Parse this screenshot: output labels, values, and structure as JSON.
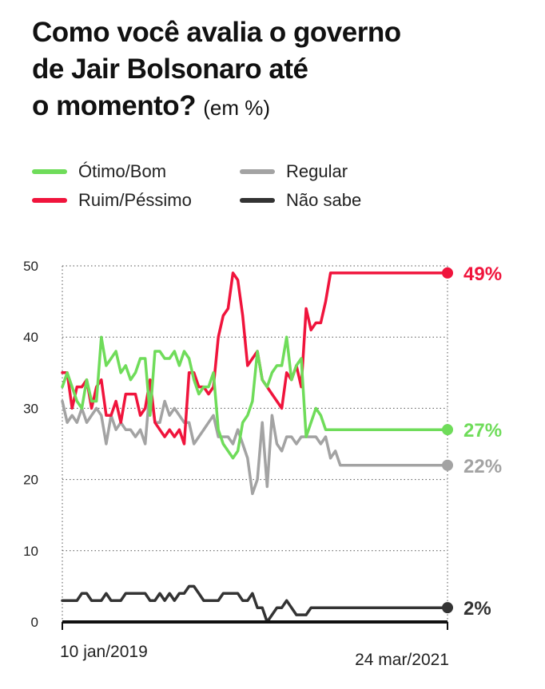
{
  "title": {
    "line1": "Como você avalia o governo",
    "line2": "de Jair Bolsonaro até",
    "line3": "o momento?",
    "unit": "(em %)"
  },
  "legend": [
    {
      "label": "Ótimo/Bom",
      "color": "#6fdc5a"
    },
    {
      "label": "Regular",
      "color": "#a3a3a3"
    },
    {
      "label": "Ruim/Péssimo",
      "color": "#f0143c"
    },
    {
      "label": "Não sabe",
      "color": "#333333"
    }
  ],
  "chart_data": {
    "type": "line",
    "title": "Como você avalia o governo de Jair Bolsonaro até o momento? (em %)",
    "ylim": [
      0,
      50
    ],
    "yticks": [
      "0",
      "10",
      "20",
      "30",
      "40",
      "50"
    ],
    "x_range_labels": [
      "10 jan/2019",
      "24 mar/2021"
    ],
    "x": [
      0,
      1,
      2,
      3,
      4,
      5,
      6,
      7,
      8,
      9,
      10,
      11,
      12,
      13,
      14,
      15,
      16,
      17,
      18,
      19,
      20,
      21,
      22,
      23,
      24,
      25,
      26,
      27,
      28,
      29,
      30,
      31,
      32,
      33,
      34,
      35,
      36,
      37,
      38,
      39,
      40,
      41,
      42,
      43,
      44,
      45,
      46,
      47,
      48,
      49,
      50,
      51,
      52,
      53,
      54,
      55,
      56,
      57,
      58,
      59,
      60,
      61,
      62,
      63,
      64,
      65,
      66,
      67,
      68,
      69,
      70,
      71,
      72,
      73,
      74,
      75,
      76,
      77,
      78,
      79
    ],
    "grid": true,
    "series": [
      {
        "name": "Ótimo/Bom",
        "color": "#6fdc5a",
        "end_label": "27%",
        "values": [
          33,
          35,
          33,
          31,
          30,
          34,
          31,
          31,
          40,
          36,
          37,
          38,
          35,
          36,
          34,
          35,
          37,
          37,
          29,
          38,
          38,
          37,
          37,
          38,
          36,
          38,
          37,
          34,
          32,
          33,
          33,
          35,
          27,
          25,
          24,
          23,
          24,
          28,
          29,
          31,
          38,
          34,
          33,
          35,
          36,
          36,
          40,
          34,
          36,
          37,
          26,
          28,
          30,
          29,
          27,
          27,
          27,
          27,
          27,
          27,
          27,
          27,
          27,
          27,
          27,
          27,
          27,
          27,
          27,
          27,
          27,
          27,
          27,
          27,
          27,
          27,
          27,
          27,
          27,
          27
        ]
      },
      {
        "name": "Ruim/Péssimo",
        "color": "#f0143c",
        "end_label": "49%",
        "values": [
          35,
          35,
          30,
          33,
          33,
          34,
          30,
          33,
          34,
          29,
          29,
          31,
          28,
          32,
          32,
          32,
          29,
          30,
          34,
          28,
          27,
          26,
          27,
          26,
          27,
          25,
          35,
          35,
          33,
          33,
          32,
          33,
          40,
          43,
          44,
          49,
          48,
          43,
          36,
          37,
          38,
          34,
          33,
          32,
          31,
          30,
          35,
          34,
          36,
          33,
          44,
          41,
          42,
          42,
          45,
          49,
          49,
          49,
          49,
          49,
          49,
          49,
          49,
          49,
          49,
          49,
          49,
          49,
          49,
          49,
          49,
          49,
          49,
          49,
          49,
          49,
          49,
          49,
          49,
          49
        ]
      },
      {
        "name": "Regular",
        "color": "#a3a3a3",
        "end_label": "22%",
        "values": [
          31,
          28,
          29,
          28,
          30,
          28,
          29,
          30,
          29,
          25,
          29,
          27,
          28,
          27,
          27,
          26,
          27,
          25,
          33,
          28,
          28,
          31,
          29,
          30,
          29,
          28,
          28,
          25,
          26,
          27,
          28,
          29,
          26,
          26,
          26,
          25,
          27,
          25,
          23,
          18,
          20,
          28,
          19,
          29,
          25,
          24,
          26,
          26,
          25,
          26,
          26,
          26,
          26,
          25,
          26,
          23,
          24,
          22,
          22,
          22,
          22,
          22,
          22,
          22,
          22,
          22,
          22,
          22,
          22,
          22,
          22,
          22,
          22,
          22,
          22,
          22,
          22,
          22,
          22,
          22
        ]
      },
      {
        "name": "Não sabe",
        "color": "#333333",
        "end_label": "2%",
        "values": [
          3,
          3,
          3,
          3,
          4,
          4,
          3,
          3,
          3,
          4,
          3,
          3,
          3,
          4,
          4,
          4,
          4,
          4,
          3,
          3,
          4,
          3,
          4,
          3,
          4,
          4,
          5,
          5,
          4,
          3,
          3,
          3,
          3,
          4,
          4,
          4,
          4,
          3,
          3,
          4,
          2,
          2,
          0,
          1,
          2,
          2,
          3,
          2,
          1,
          1,
          1,
          2,
          2,
          2,
          2,
          2,
          2,
          2,
          2,
          2,
          2,
          2,
          2,
          2,
          2,
          2,
          2,
          2,
          2,
          2,
          2,
          2,
          2,
          2,
          2,
          2,
          2,
          2,
          2,
          2
        ]
      }
    ]
  }
}
